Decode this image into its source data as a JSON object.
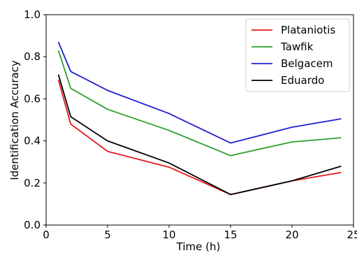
{
  "chart_data": {
    "type": "line",
    "title": "",
    "xlabel": "Time (h)",
    "ylabel": "Identification Accuracy",
    "xlim": [
      0,
      25
    ],
    "ylim": [
      0.0,
      1.0
    ],
    "xticks": [
      "0",
      "5",
      "10",
      "15",
      "20",
      "25"
    ],
    "yticks": [
      "0.0",
      "0.2",
      "0.4",
      "0.6",
      "0.8",
      "1.0"
    ],
    "grid": false,
    "legend_position": "top-right",
    "x": [
      1,
      2,
      5,
      10,
      15,
      20,
      24
    ],
    "series": [
      {
        "name": "Plataniotis",
        "color": "#e41a1c",
        "values": [
          0.69,
          0.48,
          0.35,
          0.275,
          0.145,
          0.21,
          0.25
        ]
      },
      {
        "name": "Tawfik",
        "color": "#2ca02c",
        "values": [
          0.83,
          0.65,
          0.55,
          0.45,
          0.33,
          0.395,
          0.415
        ]
      },
      {
        "name": "Belgacem",
        "color": "#1f1fd0",
        "values": [
          0.87,
          0.73,
          0.64,
          0.53,
          0.39,
          0.465,
          0.505
        ]
      },
      {
        "name": "Eduardo",
        "color": "#000000",
        "values": [
          0.715,
          0.515,
          0.4,
          0.295,
          0.145,
          0.21,
          0.28
        ]
      }
    ]
  }
}
